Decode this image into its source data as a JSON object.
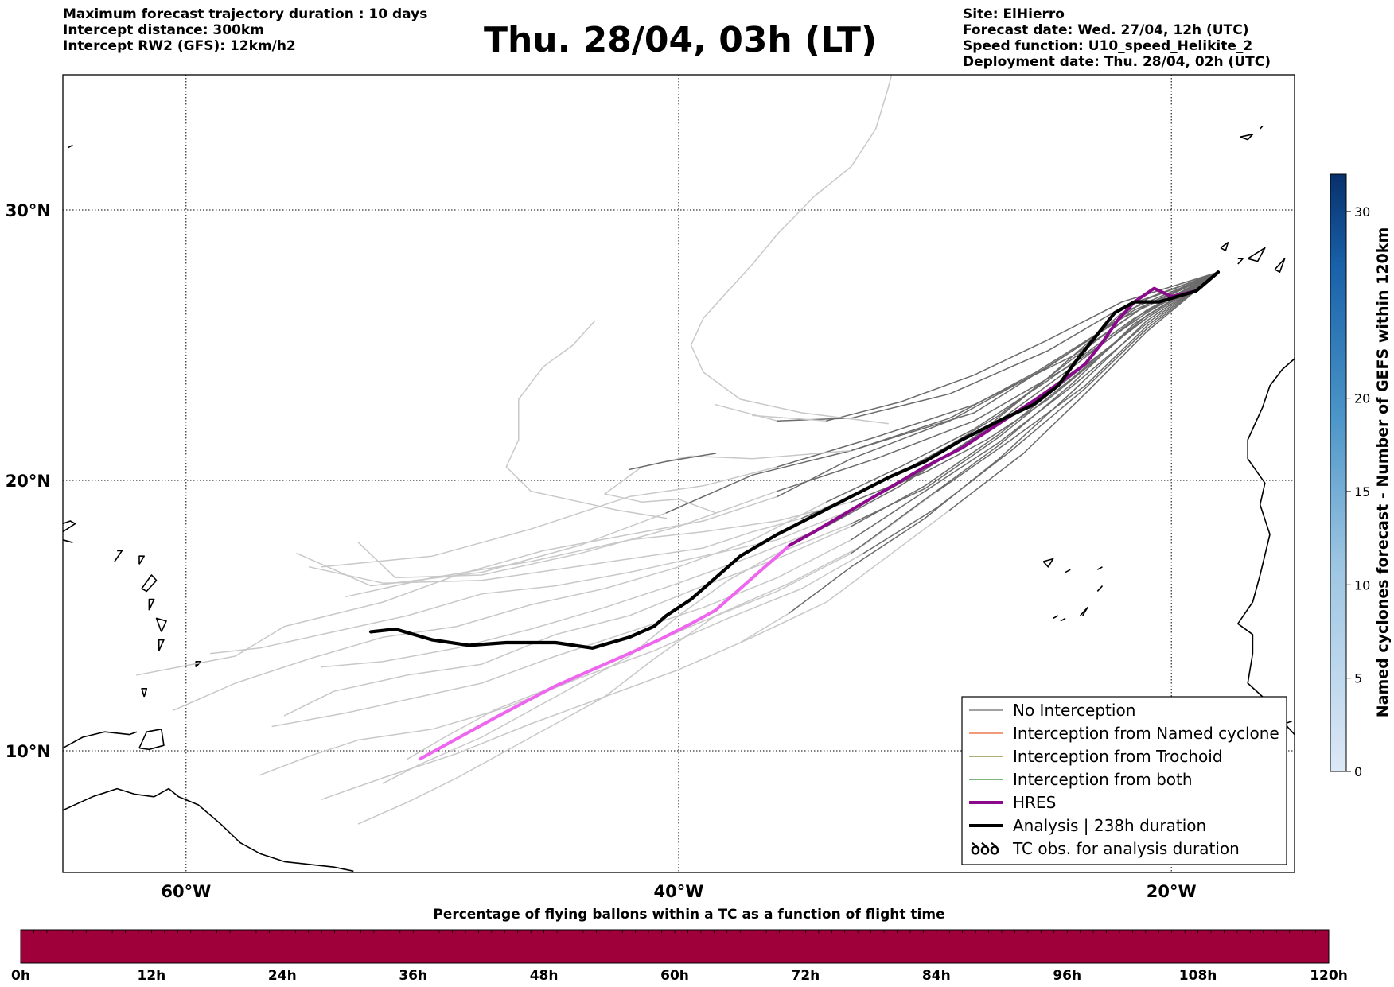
{
  "header": {
    "left_lines": [
      "Maximum forecast trajectory duration : 10 days",
      "Intercept distance: 300km",
      "Intercept RW2 (GFS):  12km/h2"
    ],
    "title": "Thu. 28/04, 03h (LT)",
    "right_lines": [
      "Site: ElHierro",
      "Forecast date: Wed. 27/04, 12h (UTC)",
      "Speed function: U10_speed_Helikite_2",
      "Deployment date: Thu. 28/04, 02h (UTC)"
    ]
  },
  "map": {
    "lon_range": [
      -65,
      -15
    ],
    "lat_range": [
      5.5,
      35
    ],
    "grid": true,
    "lat_ticks": [
      {
        "value": 30,
        "label": "30°N"
      },
      {
        "value": 20,
        "label": "20°N"
      },
      {
        "value": 10,
        "label": "10°N"
      }
    ],
    "lon_ticks": [
      {
        "value": -60,
        "label": "60°W"
      },
      {
        "value": -40,
        "label": "40°W"
      },
      {
        "value": -20,
        "label": "20°W"
      }
    ],
    "launch_site": {
      "lon": -18.1,
      "lat": 27.7
    },
    "colors": {
      "no_interception": "#6b6b6b",
      "no_interception_late": "#c8c8c8",
      "named_cyclone": "#e8602c",
      "trochoid": "#808025",
      "both": "#2e8b2e",
      "hres": "#8b0a8b",
      "hres_late": "#ee66ee",
      "analysis": "#000000",
      "coast": "#000000"
    },
    "analysis_track": [
      [
        -18.1,
        27.7
      ],
      [
        -19,
        27
      ],
      [
        -20.5,
        26.6
      ],
      [
        -21.5,
        26.6
      ],
      [
        -22.3,
        26.2
      ],
      [
        -23,
        25.4
      ],
      [
        -23.8,
        24.5
      ],
      [
        -24.6,
        23.5
      ],
      [
        -25.6,
        22.8
      ],
      [
        -27,
        22.2
      ],
      [
        -28.5,
        21.5
      ],
      [
        -30,
        20.7
      ],
      [
        -31.5,
        20.1
      ],
      [
        -33,
        19.4
      ],
      [
        -34.5,
        18.7
      ],
      [
        -36,
        18
      ],
      [
        -37.5,
        17.2
      ],
      [
        -38.5,
        16.4
      ],
      [
        -39.5,
        15.6
      ],
      [
        -40.5,
        15
      ],
      [
        -41,
        14.6
      ],
      [
        -42,
        14.2
      ],
      [
        -43.5,
        13.8
      ],
      [
        -45,
        14
      ],
      [
        -47,
        14
      ],
      [
        -48.5,
        13.9
      ],
      [
        -50,
        14.1
      ],
      [
        -51.5,
        14.5
      ],
      [
        -52.5,
        14.4
      ]
    ],
    "hres_track": [
      [
        -18.1,
        27.7
      ],
      [
        -19,
        27
      ],
      [
        -20,
        26.8
      ],
      [
        -20.7,
        27.1
      ],
      [
        -21.5,
        26.6
      ],
      [
        -22.2,
        25.9
      ],
      [
        -22.8,
        25.1
      ],
      [
        -23.5,
        24.3
      ],
      [
        -24.4,
        23.7
      ],
      [
        -25.5,
        23
      ],
      [
        -27,
        22.1
      ],
      [
        -28.5,
        21.2
      ],
      [
        -30,
        20.5
      ],
      [
        -31.5,
        19.7
      ],
      [
        -33,
        18.9
      ],
      [
        -34.5,
        18.1
      ],
      [
        -35.5,
        17.6
      ]
    ],
    "hres_track_late": [
      [
        -35.5,
        17.6
      ],
      [
        -36.5,
        16.8
      ],
      [
        -37.5,
        16
      ],
      [
        -38.5,
        15.2
      ],
      [
        -39.5,
        14.7
      ],
      [
        -40.8,
        14.1
      ],
      [
        -42,
        13.6
      ],
      [
        -43.5,
        13
      ],
      [
        -45,
        12.4
      ],
      [
        -47.5,
        11.2
      ],
      [
        -50.5,
        9.7
      ]
    ]
  },
  "legend": {
    "items": [
      {
        "label": "No Interception",
        "color": "#6b6b6b",
        "width": 1.3
      },
      {
        "label": "Interception from Named cyclone",
        "color": "#e8602c",
        "width": 1.3
      },
      {
        "label": "Interception from Trochoid",
        "color": "#808025",
        "width": 1.3
      },
      {
        "label": "Interception from both",
        "color": "#2e8b2e",
        "width": 1.3
      },
      {
        "label": "HRES",
        "color": "#8b0a8b",
        "width": 4
      },
      {
        "label": "Analysis | 238h duration",
        "color": "#000000",
        "width": 4
      },
      {
        "label": "TC obs. for analysis duration",
        "symbol": "ꝺꝺꝺ"
      }
    ]
  },
  "cyclone_colorbar": {
    "title": "Named cyclones forecast - Number of GEFS within 120km",
    "range": [
      0,
      32
    ],
    "ticks": [
      0,
      5,
      10,
      15,
      20,
      30
    ],
    "color_low": "#dce8f6",
    "color_high": "#08306b"
  },
  "time_bar": {
    "title": "Percentage of flying ballons within a TC as a function of flight time",
    "color": "#a0003a",
    "ticks": [
      "0h",
      "12h",
      "24h",
      "36h",
      "48h",
      "60h",
      "72h",
      "84h",
      "96h",
      "108h",
      "120h"
    ]
  }
}
